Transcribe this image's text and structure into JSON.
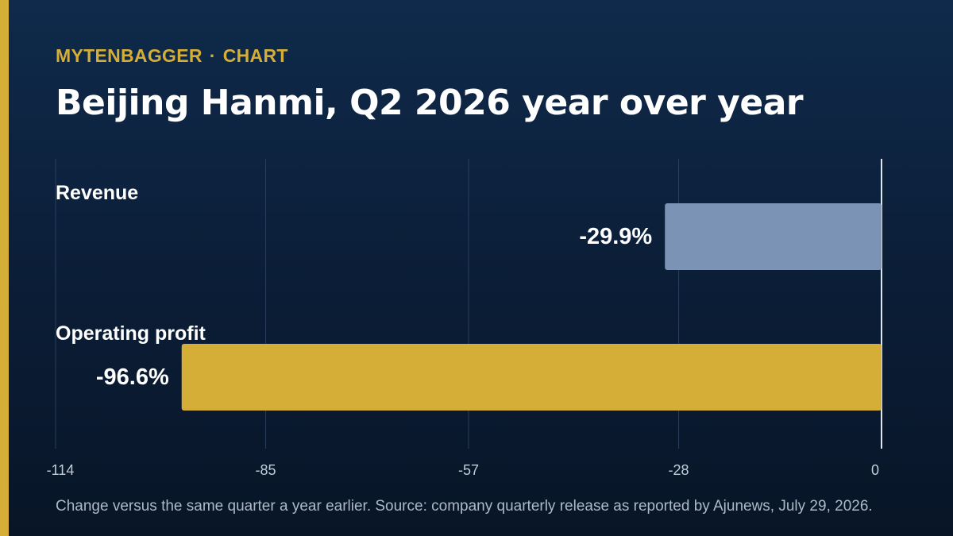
{
  "header": {
    "brand": "MYTENBAGGER",
    "separator": "·",
    "section": "CHART",
    "title": "Beijing Hanmi, Q2 2026 year over year"
  },
  "chart_data": {
    "type": "bar",
    "orientation": "horizontal",
    "title": "Beijing Hanmi, Q2 2026 year over year",
    "categories": [
      "Revenue",
      "Operating profit"
    ],
    "values": [
      -29.9,
      -96.6
    ],
    "value_labels": [
      "-29.9%",
      "-96.6%"
    ],
    "bar_colors": [
      "#7b93b5",
      "#d4ae37"
    ],
    "xlim": [
      -114,
      0
    ],
    "xticks": [
      -114,
      -85,
      -57,
      -28,
      0
    ],
    "xtick_labels": [
      "-114",
      "-85",
      "-57",
      "-28",
      "0"
    ],
    "grid": true,
    "xlabel": "",
    "ylabel": ""
  },
  "footnote": "Change versus the same quarter a year earlier. Source: company quarterly release as reported by Ajunews, July 29, 2026.",
  "colors": {
    "accent": "#d4ae37",
    "background_top": "#0f2a4b",
    "background_bottom": "#081527",
    "grid": "#2a3f5c",
    "zero_line": "#dfe6ef"
  }
}
